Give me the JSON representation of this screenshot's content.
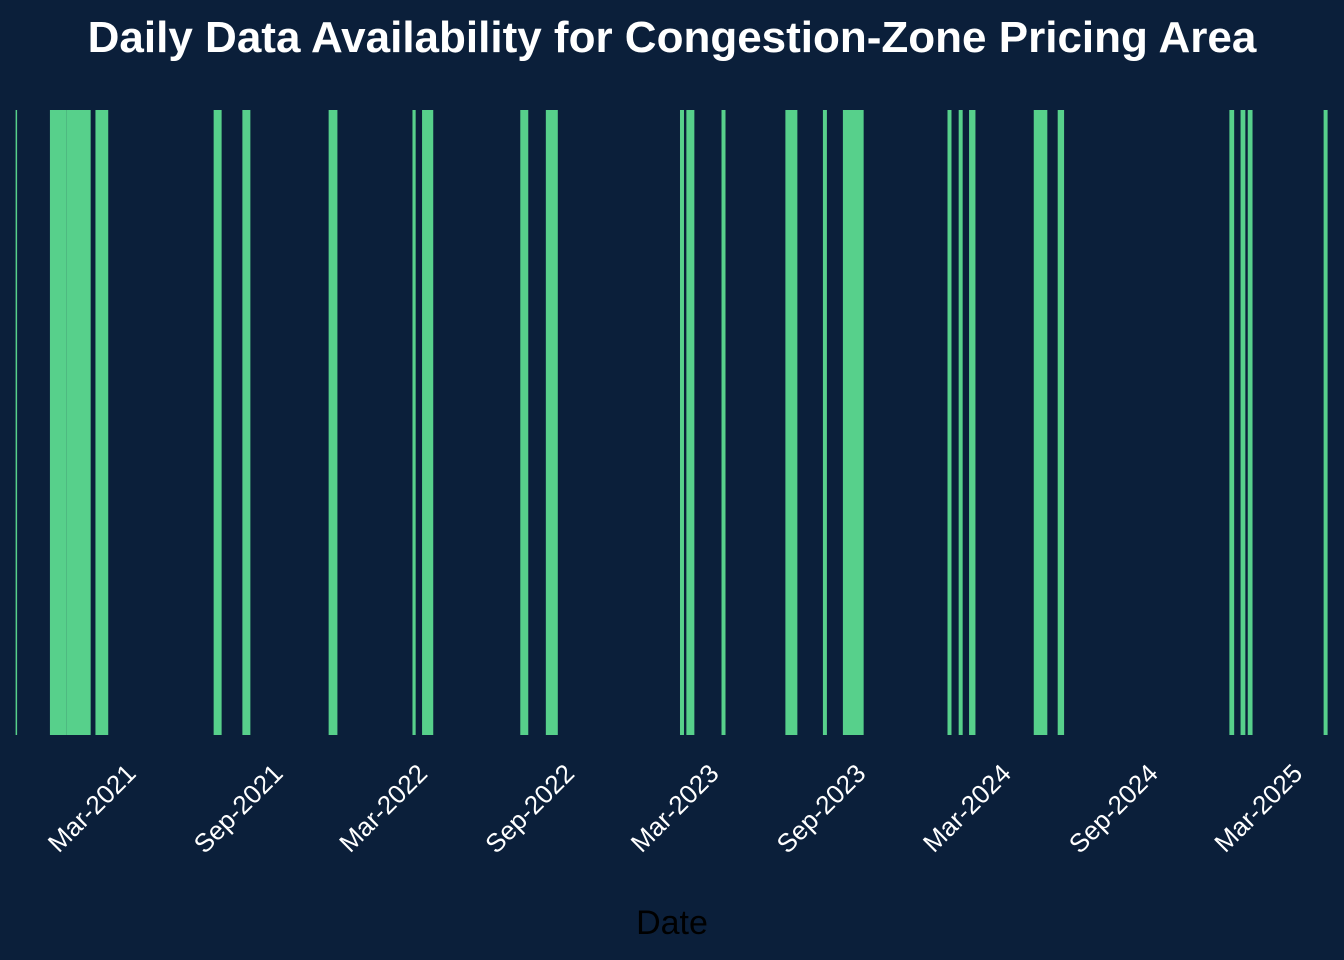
{
  "chart_data": {
    "type": "bar",
    "title": "Daily Data Availability for Congestion-Zone Pricing Area",
    "xlabel": "Date",
    "ylabel": "",
    "x_range": [
      "2020-09-25",
      "2025-03-31"
    ],
    "grid": false,
    "legend": "none",
    "colors": {
      "background": "#0b1f3a",
      "bar": "#57d08b",
      "title": "#ffffff",
      "ticks": "#ffffff",
      "axis_title": "#000000"
    },
    "x_ticks": [
      {
        "date": "2021-03-01",
        "label": "Mar-2021"
      },
      {
        "date": "2021-09-01",
        "label": "Sep-2021"
      },
      {
        "date": "2022-03-01",
        "label": "Mar-2022"
      },
      {
        "date": "2022-09-01",
        "label": "Sep-2022"
      },
      {
        "date": "2023-03-01",
        "label": "Mar-2023"
      },
      {
        "date": "2023-09-01",
        "label": "Sep-2023"
      },
      {
        "date": "2024-03-01",
        "label": "Mar-2024"
      },
      {
        "date": "2024-09-01",
        "label": "Sep-2024"
      },
      {
        "date": "2025-03-01",
        "label": "Mar-2025"
      }
    ],
    "available_periods": [
      {
        "start": "2020-09-27",
        "end": "2020-09-27"
      },
      {
        "start": "2020-11-09",
        "end": "2020-11-29"
      },
      {
        "start": "2020-11-30",
        "end": "2020-12-29"
      },
      {
        "start": "2021-01-05",
        "end": "2021-01-20"
      },
      {
        "start": "2021-06-02",
        "end": "2021-06-11"
      },
      {
        "start": "2021-07-08",
        "end": "2021-07-17"
      },
      {
        "start": "2021-10-24",
        "end": "2021-11-03"
      },
      {
        "start": "2022-02-06",
        "end": "2022-02-09"
      },
      {
        "start": "2022-02-18",
        "end": "2022-03-03"
      },
      {
        "start": "2022-06-21",
        "end": "2022-06-30"
      },
      {
        "start": "2022-07-23",
        "end": "2022-08-06"
      },
      {
        "start": "2023-01-07",
        "end": "2023-01-11"
      },
      {
        "start": "2023-01-15",
        "end": "2023-01-24"
      },
      {
        "start": "2023-02-28",
        "end": "2023-03-04"
      },
      {
        "start": "2023-05-19",
        "end": "2023-06-02"
      },
      {
        "start": "2023-07-05",
        "end": "2023-07-09"
      },
      {
        "start": "2023-07-30",
        "end": "2023-08-24"
      },
      {
        "start": "2023-12-08",
        "end": "2023-12-12"
      },
      {
        "start": "2023-12-22",
        "end": "2023-12-26"
      },
      {
        "start": "2024-01-04",
        "end": "2024-01-11"
      },
      {
        "start": "2024-03-25",
        "end": "2024-04-10"
      },
      {
        "start": "2024-04-24",
        "end": "2024-05-01"
      },
      {
        "start": "2024-11-25",
        "end": "2024-11-30"
      },
      {
        "start": "2024-12-09",
        "end": "2024-12-14"
      },
      {
        "start": "2024-12-18",
        "end": "2024-12-23"
      },
      {
        "start": "2025-03-23",
        "end": "2025-03-27"
      }
    ]
  }
}
